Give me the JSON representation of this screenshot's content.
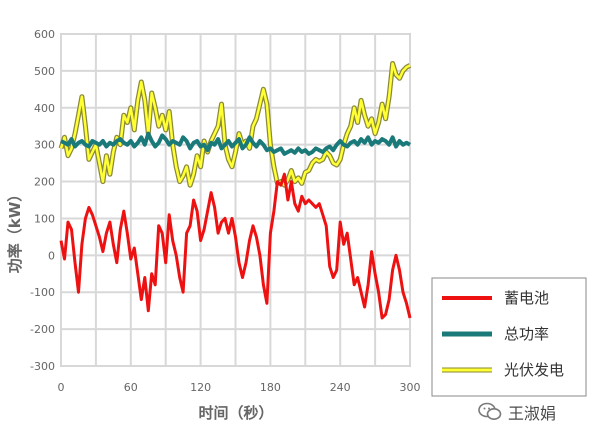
{
  "chart_data": {
    "type": "line",
    "title": "",
    "xlabel": "时间（秒）",
    "ylabel": "功率（kW）",
    "xlim": [
      0,
      300
    ],
    "ylim": [
      -300,
      600
    ],
    "x_ticks": [
      "0",
      "60",
      "120",
      "180",
      "240",
      "300"
    ],
    "y_ticks": [
      "600",
      "500",
      "400",
      "300",
      "200",
      "100",
      "0",
      "-100",
      "-200",
      "-300"
    ],
    "grid": true,
    "legend_position": "right-bottom",
    "series": [
      {
        "name": "光伏发电",
        "color": "#ffff33",
        "x": [
          0,
          3,
          6,
          9,
          12,
          15,
          18,
          21,
          24,
          27,
          30,
          33,
          36,
          39,
          42,
          45,
          48,
          51,
          54,
          57,
          60,
          63,
          66,
          69,
          72,
          75,
          78,
          81,
          84,
          87,
          90,
          93,
          96,
          99,
          102,
          105,
          108,
          111,
          114,
          117,
          120,
          123,
          126,
          129,
          132,
          135,
          138,
          141,
          144,
          147,
          150,
          153,
          156,
          159,
          162,
          165,
          168,
          171,
          174,
          177,
          180,
          183,
          186,
          189,
          192,
          195,
          198,
          201,
          204,
          207,
          210,
          213,
          216,
          219,
          222,
          225,
          228,
          231,
          234,
          237,
          240,
          243,
          246,
          249,
          252,
          255,
          258,
          261,
          264,
          267,
          270,
          273,
          276,
          279,
          282,
          285,
          288,
          291,
          294,
          297,
          300
        ],
        "values": [
          290,
          320,
          270,
          290,
          330,
          380,
          430,
          350,
          260,
          280,
          300,
          250,
          200,
          270,
          220,
          280,
          320,
          300,
          380,
          360,
          400,
          340,
          420,
          470,
          420,
          330,
          440,
          400,
          350,
          380,
          340,
          390,
          300,
          240,
          200,
          215,
          240,
          190,
          220,
          270,
          240,
          310,
          280,
          310,
          330,
          350,
          410,
          300,
          260,
          240,
          280,
          330,
          300,
          310,
          290,
          350,
          370,
          410,
          450,
          410,
          300,
          240,
          195,
          200,
          190,
          205,
          230,
          200,
          210,
          195,
          225,
          230,
          250,
          260,
          255,
          260,
          280,
          270,
          250,
          245,
          260,
          300,
          330,
          350,
          400,
          360,
          420,
          380,
          350,
          370,
          330,
          360,
          410,
          370,
          430,
          520,
          490,
          480,
          500,
          510,
          515
        ]
      },
      {
        "name": "总功率",
        "color": "#1a7a7a",
        "x": [
          0,
          3,
          6,
          9,
          12,
          15,
          18,
          21,
          24,
          27,
          30,
          33,
          36,
          39,
          42,
          45,
          48,
          51,
          54,
          57,
          60,
          63,
          66,
          69,
          72,
          75,
          78,
          81,
          84,
          87,
          90,
          93,
          96,
          99,
          102,
          105,
          108,
          111,
          114,
          117,
          120,
          123,
          126,
          129,
          132,
          135,
          138,
          141,
          144,
          147,
          150,
          153,
          156,
          159,
          162,
          165,
          168,
          171,
          174,
          177,
          180,
          183,
          186,
          189,
          192,
          195,
          198,
          201,
          204,
          207,
          210,
          213,
          216,
          219,
          222,
          225,
          228,
          231,
          234,
          237,
          240,
          243,
          246,
          249,
          252,
          255,
          258,
          261,
          264,
          267,
          270,
          273,
          276,
          279,
          282,
          285,
          288,
          291,
          294,
          297,
          300
        ],
        "values": [
          310,
          305,
          300,
          315,
          295,
          305,
          310,
          300,
          295,
          310,
          305,
          300,
          310,
          295,
          305,
          300,
          310,
          315,
          305,
          300,
          310,
          295,
          305,
          320,
          300,
          330,
          310,
          295,
          305,
          325,
          315,
          300,
          310,
          305,
          300,
          320,
          310,
          290,
          305,
          310,
          295,
          300,
          285,
          305,
          300,
          315,
          290,
          300,
          310,
          295,
          305,
          315,
          290,
          300,
          320,
          305,
          295,
          310,
          300,
          285,
          290,
          280,
          285,
          290,
          275,
          280,
          285,
          278,
          290,
          280,
          285,
          275,
          280,
          290,
          285,
          280,
          290,
          295,
          285,
          300,
          310,
          300,
          295,
          305,
          310,
          300,
          315,
          305,
          320,
          300,
          310,
          305,
          315,
          310,
          300,
          320,
          295,
          310,
          300,
          305,
          300
        ]
      },
      {
        "name": "蓄电池",
        "color": "#ee1111",
        "x": [
          0,
          3,
          6,
          9,
          12,
          15,
          18,
          21,
          24,
          27,
          30,
          33,
          36,
          39,
          42,
          45,
          48,
          51,
          54,
          57,
          60,
          63,
          66,
          69,
          72,
          75,
          78,
          81,
          84,
          87,
          90,
          93,
          96,
          99,
          102,
          105,
          108,
          111,
          114,
          117,
          120,
          123,
          126,
          129,
          132,
          135,
          138,
          141,
          144,
          147,
          150,
          153,
          156,
          159,
          162,
          165,
          168,
          171,
          174,
          177,
          180,
          183,
          186,
          189,
          192,
          195,
          198,
          201,
          204,
          207,
          210,
          213,
          216,
          219,
          222,
          225,
          228,
          231,
          234,
          237,
          240,
          243,
          246,
          249,
          252,
          255,
          258,
          261,
          264,
          267,
          270,
          273,
          276,
          279,
          282,
          285,
          288,
          291,
          294,
          297,
          300
        ],
        "values": [
          40,
          -10,
          90,
          70,
          -20,
          -100,
          30,
          100,
          130,
          110,
          80,
          50,
          10,
          60,
          90,
          30,
          -20,
          70,
          120,
          60,
          -10,
          20,
          -50,
          -120,
          -60,
          -150,
          -50,
          -80,
          80,
          60,
          -20,
          110,
          40,
          0,
          -60,
          -100,
          60,
          80,
          150,
          120,
          40,
          70,
          120,
          170,
          130,
          60,
          90,
          100,
          60,
          100,
          50,
          -20,
          -60,
          -20,
          40,
          80,
          50,
          0,
          -80,
          -130,
          60,
          120,
          200,
          190,
          220,
          150,
          200,
          140,
          120,
          160,
          140,
          150,
          140,
          130,
          140,
          110,
          80,
          -30,
          -60,
          -40,
          90,
          30,
          60,
          -10,
          -80,
          -60,
          -100,
          -140,
          -80,
          10,
          -50,
          -100,
          -170,
          -160,
          -120,
          -40,
          0,
          -40,
          -100,
          -130,
          -170
        ]
      }
    ]
  },
  "watermark": {
    "text": "王淑娟",
    "icon": "wechat-icon"
  }
}
